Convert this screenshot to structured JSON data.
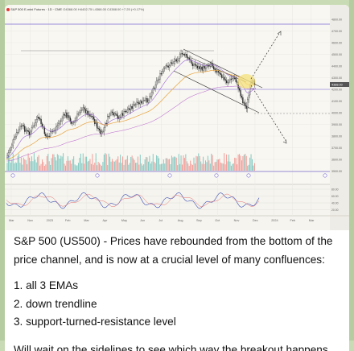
{
  "chart": {
    "header_title": "S&P 500 E-mini Futures · 1D · CME",
    "header_values": "O4368.00 H4402.75 L4368.00 C4388.00 +7.25 (+0.17%)",
    "badges": [
      "S&P",
      "4388",
      "4388.00"
    ],
    "price_labels": [
      "4800.00",
      "4700.00",
      "4600.00",
      "4500.00",
      "4400.00",
      "4300.00",
      "4200.00",
      "4100.00",
      "4000.00",
      "3900.00",
      "3800.00",
      "3700.00",
      "3600.00",
      "3500.00"
    ],
    "current_price": "4388.00",
    "osc_labels": [
      "80.00",
      "60.00",
      "40.00",
      "20.00"
    ],
    "time_labels": [
      "Mar",
      "Nov",
      "2023",
      "Feb",
      "Mar",
      "Apr",
      "May",
      "Jun",
      "Jul",
      "Aug",
      "Sep",
      "Oct",
      "Nov",
      "Dec",
      "2024",
      "Feb",
      "Mar"
    ],
    "colors": {
      "up": "#26a69a",
      "down": "#ef5350",
      "ema_purple": "#9c6ad6",
      "ema_orange": "#e8a23c",
      "highlight": "#f5e27a"
    }
  },
  "caption": {
    "line1": "S&P 500 (US500) - Prices have rebounded from the bottom of the price channel, and is now at a crucial level of many confluences:",
    "item1": "1. all 3 EMAs",
    "item2": "2. down trendline",
    "item3": "3. support-turned-resistance level",
    "line_last": "Will wait on the sidelines to see which way the breakout happens."
  }
}
